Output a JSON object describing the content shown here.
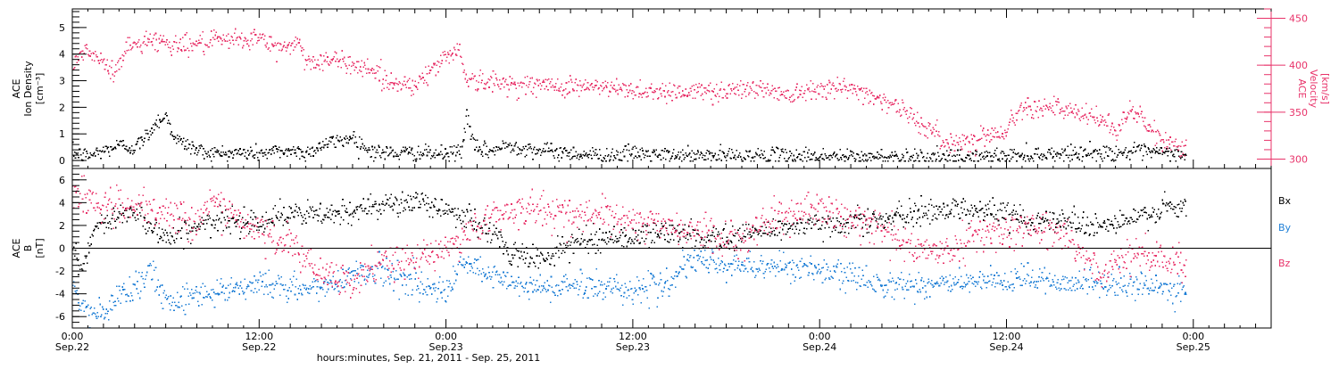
{
  "chart_data": {
    "type": "scatter",
    "xlabel": "hours:minutes, Sep. 21, 2011 - Sep. 25, 2011",
    "x_ticks": [
      {
        "hours": 0,
        "top": "0:00",
        "bottom": "Sep.22"
      },
      {
        "hours": 12,
        "top": "12:00",
        "bottom": "Sep.22"
      },
      {
        "hours": 24,
        "top": "0:00",
        "bottom": "Sep.23"
      },
      {
        "hours": 36,
        "top": "12:00",
        "bottom": "Sep.23"
      },
      {
        "hours": 48,
        "top": "0:00",
        "bottom": "Sep.24"
      },
      {
        "hours": 60,
        "top": "12:00",
        "bottom": "Sep.24"
      },
      {
        "hours": 72,
        "top": "0:00",
        "bottom": "Sep.25"
      }
    ],
    "xlim_hours": [
      0,
      77
    ],
    "panels": [
      {
        "name": "plasma",
        "ylabel_lines": [
          "ACE",
          "Ion Density",
          "[cm⁻³]"
        ],
        "ylim": [
          -0.3,
          5.7
        ],
        "yticks": [
          0,
          1,
          2,
          3,
          4,
          5
        ],
        "right_axis": {
          "ylabel_lines": [
            "ACE",
            "Velocity",
            "[km/s]"
          ],
          "ylim": [
            290,
            460
          ],
          "yticks": [
            300,
            350,
            400,
            450
          ],
          "color": "#e8336a"
        },
        "series": [
          {
            "name": "density",
            "axis": "left",
            "color": "#000000",
            "knots_hours": [
              0,
              1,
              2,
              3,
              4,
              4.8,
              5.4,
              6,
              6.6,
              7.4,
              8,
              9,
              10,
              12,
              14,
              15,
              16,
              18,
              19,
              20,
              22,
              24,
              25,
              25.3,
              25.6,
              26,
              27,
              28,
              30,
              32,
              34,
              36,
              38,
              40,
              42,
              44,
              46,
              48,
              50,
              52,
              54,
              56,
              58,
              60,
              62,
              64,
              66,
              68,
              70,
              71.5
            ],
            "knots_values": [
              0.3,
              0.2,
              0.4,
              0.6,
              0.5,
              1.0,
              1.5,
              1.7,
              0.8,
              0.6,
              0.4,
              0.3,
              0.3,
              0.3,
              0.4,
              0.3,
              0.6,
              0.9,
              0.4,
              0.3,
              0.3,
              0.25,
              0.4,
              1.9,
              0.8,
              0.4,
              0.4,
              0.6,
              0.4,
              0.3,
              0.2,
              0.3,
              0.2,
              0.2,
              0.2,
              0.2,
              0.2,
              0.2,
              0.15,
              0.15,
              0.2,
              0.1,
              0.15,
              0.2,
              0.25,
              0.3,
              0.3,
              0.35,
              0.3,
              0.25
            ],
            "spread": 0.25
          },
          {
            "name": "velocity",
            "axis": "right",
            "color": "#e8336a",
            "knots_hours": [
              0,
              0.8,
              2,
              2.6,
              3.5,
              5,
              7,
              9,
              12,
              13,
              14.5,
              15,
              17,
              18,
              19.5,
              20,
              22,
              23,
              24,
              24.8,
              25.3,
              27,
              30,
              33,
              36,
              40,
              44,
              46,
              48,
              50,
              51.5,
              53,
              55,
              56,
              58,
              60,
              61,
              63,
              64,
              66,
              67,
              68,
              69,
              70,
              71.5
            ],
            "knots_values": [
              398,
              418,
              402,
              392,
              420,
              428,
              422,
              425,
              430,
              418,
              425,
              405,
              405,
              402,
              395,
              383,
              380,
              395,
              410,
              420,
              385,
              382,
              379,
              378,
              374,
              372,
              376,
              370,
              378,
              375,
              368,
              356,
              332,
              318,
              322,
              332,
              358,
              356,
              350,
              344,
              330,
              355,
              335,
              320,
              312
            ],
            "spread": 9
          }
        ]
      },
      {
        "name": "magnetic-field",
        "ylabel_lines": [
          "ACE",
          "B",
          "[nT]"
        ],
        "ylim": [
          -7,
          7
        ],
        "yticks": [
          -6,
          -4,
          -2,
          0,
          2,
          4,
          6
        ],
        "legend": [
          "Bx",
          "By",
          "Bz"
        ],
        "series": [
          {
            "name": "Bx",
            "color": "#000000",
            "knots_hours": [
              0,
              0.6,
              1.5,
              2,
              3,
              4,
              5,
              6,
              8,
              10,
              12,
              14,
              16,
              18,
              19,
              20,
              21,
              22,
              23,
              24,
              25,
              26,
              27,
              28,
              29,
              30,
              32,
              34,
              36,
              38,
              40,
              42,
              44,
              46,
              48,
              50,
              52,
              54,
              56,
              58,
              60,
              62,
              64,
              66,
              68,
              70,
              71.5
            ],
            "knots_values": [
              0.5,
              -2,
              2,
              2,
              3,
              3.5,
              2,
              1,
              2,
              2.5,
              2.5,
              3,
              3,
              3,
              4,
              4,
              4,
              4,
              3.8,
              3.5,
              3,
              2,
              1.5,
              -0.5,
              -0.5,
              -1,
              0.5,
              1,
              1,
              1.5,
              1,
              1,
              1.5,
              2,
              2,
              2.5,
              2.5,
              3,
              3.5,
              3.5,
              3,
              2.5,
              2.5,
              2,
              2.5,
              3.5,
              3.5
            ],
            "spread": 0.9
          },
          {
            "name": "By",
            "color": "#1f7fd6",
            "knots_hours": [
              0,
              0.5,
              1,
              2,
              3,
              4,
              5,
              6,
              8,
              10,
              12,
              14,
              16,
              18,
              20,
              22,
              24,
              25,
              26,
              28,
              30,
              32,
              34,
              36,
              38,
              40,
              42,
              44,
              46,
              48,
              50,
              52,
              54,
              56,
              58,
              60,
              62,
              64,
              66,
              68,
              70,
              71.5
            ],
            "knots_values": [
              -3,
              -5,
              -5.5,
              -5.8,
              -4,
              -3,
              -2,
              -4.5,
              -4,
              -3.5,
              -3,
              -3.5,
              -3.5,
              -2,
              -2,
              -3,
              -4,
              -1,
              -2,
              -3,
              -3.5,
              -3.2,
              -3.3,
              -3.5,
              -3.2,
              -1,
              -1.5,
              -1.5,
              -1.5,
              -2,
              -2.5,
              -3,
              -3.2,
              -3,
              -3,
              -3,
              -2.5,
              -3,
              -3,
              -3.2,
              -3.5,
              -3.8
            ],
            "spread": 1.0
          },
          {
            "name": "Bz",
            "color": "#e8336a",
            "knots_hours": [
              0,
              0.6,
              1.5,
              2,
              4,
              6,
              8,
              9,
              10,
              12,
              14,
              16,
              18,
              20,
              22,
              24,
              26,
              28,
              30,
              32,
              34,
              36,
              38,
              40,
              42,
              44,
              46,
              48,
              50,
              52,
              54,
              56,
              58,
              60,
              62,
              64,
              66,
              68,
              70,
              71.5
            ],
            "knots_values": [
              5.2,
              4.8,
              4,
              3.8,
              3.5,
              3,
              2.5,
              4.5,
              3,
              1.5,
              0.5,
              -2.5,
              -3,
              -1,
              -1,
              0,
              2,
              3.5,
              3.5,
              3,
              3,
              2.5,
              2,
              1.5,
              0.5,
              2,
              3,
              3.5,
              2.5,
              2,
              0,
              -0.5,
              1.5,
              1.5,
              2,
              1,
              -2.5,
              0,
              -1,
              -1.5
            ],
            "spread": 1.2
          }
        ]
      }
    ]
  }
}
